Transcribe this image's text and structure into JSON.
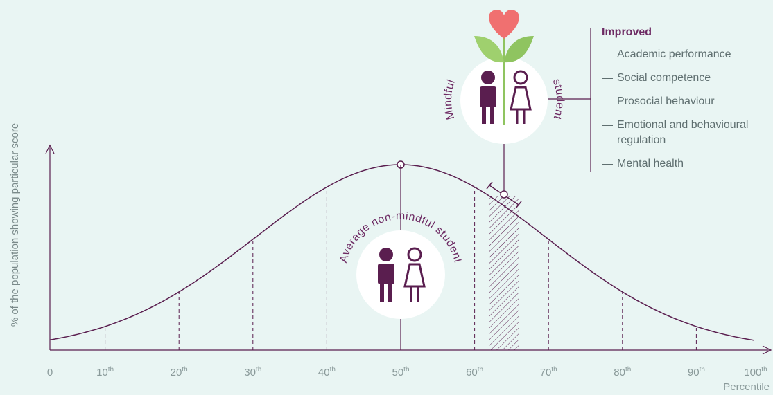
{
  "chart_data": {
    "type": "line",
    "y_axis_label": "% of the population showing particular score",
    "x_axis_label": "Percentile",
    "xlim": [
      0,
      100
    ],
    "xticks": [
      0,
      {
        "value": 10,
        "label": "10th"
      },
      {
        "value": 20,
        "label": "20th"
      },
      {
        "value": 30,
        "label": "30th"
      },
      {
        "value": 40,
        "label": "40th"
      },
      {
        "value": 50,
        "label": "50th"
      },
      {
        "value": 60,
        "label": "60th"
      },
      {
        "value": 70,
        "label": "70th"
      },
      {
        "value": 80,
        "label": "80th"
      },
      {
        "value": 90,
        "label": "90th"
      },
      {
        "value": 100,
        "label": "100th"
      }
    ],
    "color": "#5a1e4f",
    "annotations": {
      "average": "Average non-mindful student",
      "mindful_left": "Mindful",
      "mindful_right": "student"
    },
    "improved": {
      "title": "Improved",
      "items": [
        "Academic performance",
        "Social competence",
        "Prosocial behaviour",
        "Emotional and behavioural regulation",
        "Mental health"
      ]
    }
  }
}
